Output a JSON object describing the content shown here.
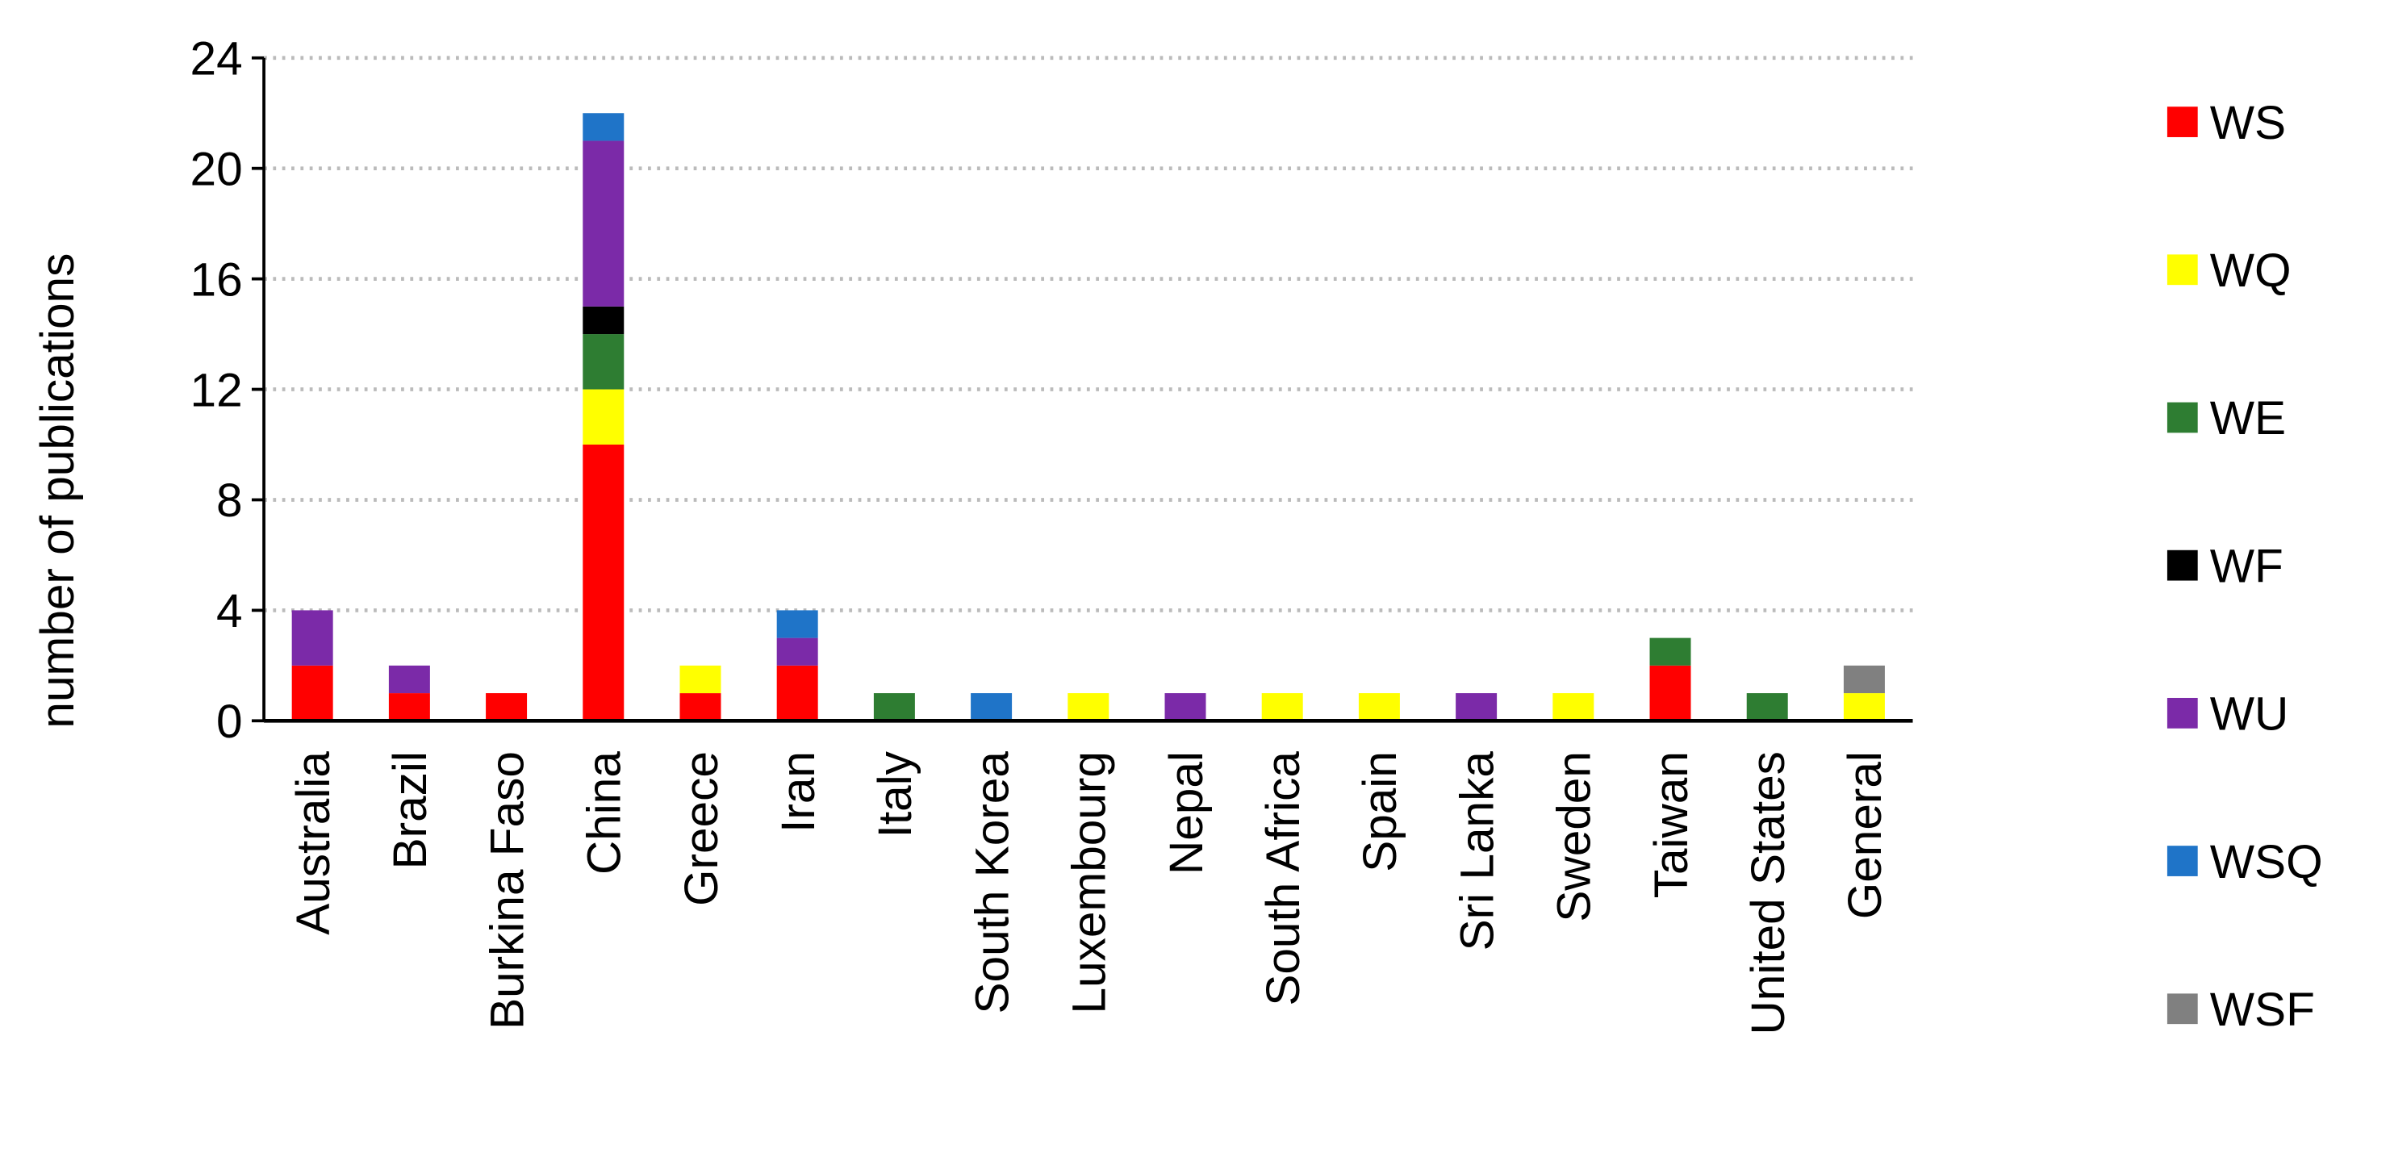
{
  "chart_data": {
    "type": "stacked_bar",
    "y_label": "number of publications",
    "categories": [
      "Australia",
      "Brazil",
      "Burkina Faso",
      "China",
      "Greece",
      "Iran",
      "Italy",
      "South Korea",
      "Luxembourg",
      "Nepal",
      "South Africa",
      "Spain",
      "Sri Lanka",
      "Sweden",
      "Taiwan",
      "United States",
      "General"
    ],
    "series": [
      {
        "name": "WS",
        "color": "#ff0000",
        "values": [
          2,
          1,
          1,
          10,
          1,
          2,
          0,
          0,
          0,
          0,
          0,
          0,
          0,
          0,
          2,
          0,
          0
        ]
      },
      {
        "name": "WQ",
        "color": "#ffff00",
        "values": [
          0,
          0,
          0,
          2,
          1,
          0,
          0,
          0,
          1,
          0,
          1,
          1,
          0,
          1,
          0,
          0,
          1
        ]
      },
      {
        "name": "WE",
        "color": "#2e7d32",
        "values": [
          0,
          0,
          0,
          2,
          0,
          0,
          1,
          0,
          0,
          0,
          0,
          0,
          0,
          0,
          1,
          1,
          0
        ]
      },
      {
        "name": "WF",
        "color": "#000000",
        "values": [
          0,
          0,
          0,
          1,
          0,
          0,
          0,
          0,
          0,
          0,
          0,
          0,
          0,
          0,
          0,
          0,
          0
        ]
      },
      {
        "name": "WU",
        "color": "#7b2aa8",
        "values": [
          2,
          1,
          0,
          6,
          0,
          1,
          0,
          0,
          0,
          1,
          0,
          0,
          1,
          0,
          0,
          0,
          0
        ]
      },
      {
        "name": "WSQ",
        "color": "#1f74c8",
        "values": [
          0,
          0,
          0,
          1,
          0,
          1,
          0,
          1,
          0,
          0,
          0,
          0,
          0,
          0,
          0,
          0,
          0
        ]
      },
      {
        "name": "WSF",
        "color": "#808080",
        "values": [
          0,
          0,
          0,
          0,
          0,
          0,
          0,
          0,
          0,
          0,
          0,
          0,
          0,
          0,
          0,
          0,
          1
        ]
      }
    ],
    "ylim": [
      0,
      24
    ],
    "yticks": [
      0,
      4,
      8,
      12,
      16,
      20,
      24
    ],
    "grid": true,
    "legend": "right"
  }
}
